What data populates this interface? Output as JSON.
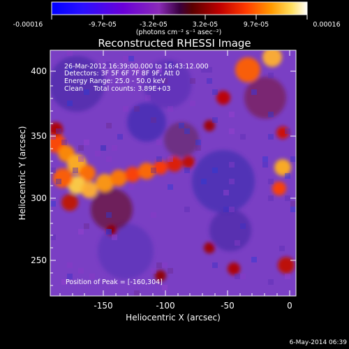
{
  "colorbar": {
    "tick_labels": [
      "-0.00016",
      "-9.7e-05",
      "-3.2e-05",
      "3.2e-05",
      "9.7e-05",
      "0.00016"
    ],
    "units": "(photons cm⁻² s⁻¹ asec⁻²)",
    "colors": [
      "#0000ff",
      "#3a00ff",
      "#6a00d8",
      "#8a2bb8",
      "#7a1a5a",
      "#5a0000",
      "#b00000",
      "#ff3000",
      "#ff8a00",
      "#ffd840",
      "#ffffff"
    ]
  },
  "image": {
    "title": "Reconstructed RHESSI Image",
    "x_axis_label": "Heliocentric X (arcsec)",
    "y_axis_label": "Heliocentric Y (arcsec)",
    "x_ticks": [
      "-150",
      "-100",
      "-50",
      "0"
    ],
    "y_ticks": [
      "250",
      "300",
      "350",
      "400"
    ],
    "annotations": {
      "line1": "26-Mar-2012 16:39:00.000 to 16:43:12.000",
      "line2": "Detectors: 3F 5F 6F 7F 8F 9F, Att 0",
      "line3": "Energy Range: 25.0 - 50.0 keV",
      "line4": "Clean     Total counts: 3.89E+03"
    },
    "peak_label": "Position of Peak = [-160,304]",
    "background_color": "#7a3fc4"
  },
  "footer": {
    "timestamp": "6-May-2014 06:39"
  }
}
